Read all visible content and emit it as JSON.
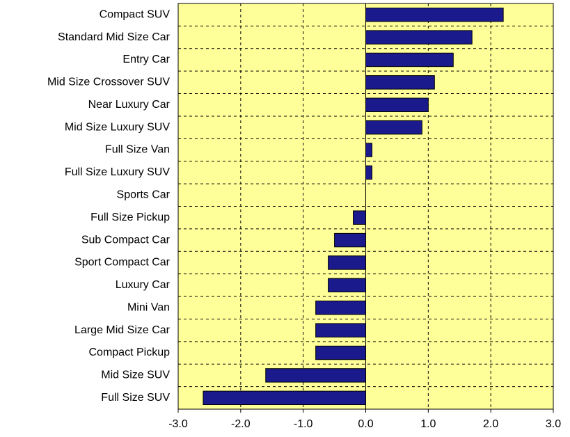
{
  "chart_data": {
    "type": "bar",
    "orientation": "horizontal",
    "categories": [
      "Compact SUV",
      "Standard Mid Size Car",
      "Entry Car",
      "Mid Size Crossover SUV",
      "Near Luxury Car",
      "Mid Size Luxury SUV",
      "Full Size Van",
      "Full Size Luxury SUV",
      "Sports Car",
      "Full Size Pickup",
      "Sub Compact Car",
      "Sport Compact Car",
      "Luxury Car",
      "Mini Van",
      "Large Mid Size Car",
      "Compact Pickup",
      "Mid Size SUV",
      "Full Size SUV"
    ],
    "values": [
      2.2,
      1.7,
      1.4,
      1.1,
      1.0,
      0.9,
      0.1,
      0.1,
      0,
      -0.2,
      -0.5,
      -0.6,
      -0.6,
      -0.8,
      -0.8,
      -0.8,
      -1.6,
      -2.6
    ],
    "color": "#1a1a8c",
    "plot_background": "#ffff99",
    "xlim": [
      -3,
      3
    ],
    "xticks": [
      {
        "value": -3,
        "label": "-3.0"
      },
      {
        "value": -2,
        "label": "-2.0"
      },
      {
        "value": -1,
        "label": "-1.0"
      },
      {
        "value": 0,
        "label": "0.0"
      },
      {
        "value": 1,
        "label": "1.0"
      },
      {
        "value": 2,
        "label": "2.0"
      },
      {
        "value": 3,
        "label": "3.0"
      }
    ],
    "grid": true
  }
}
